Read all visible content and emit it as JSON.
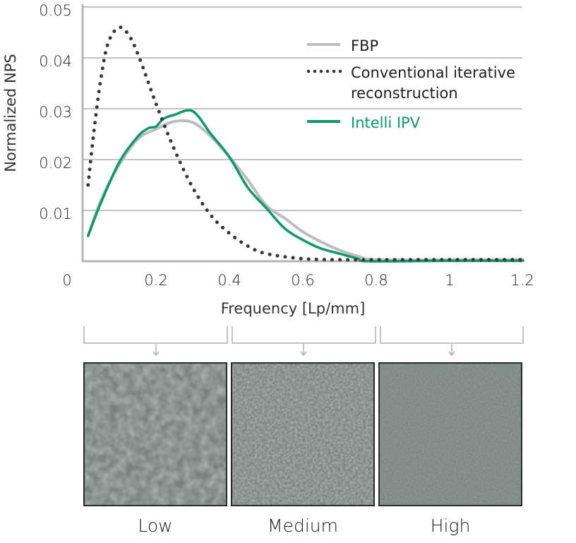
{
  "chart_data": {
    "type": "line",
    "title": "",
    "xlabel": "Frequency [Lp/mm]",
    "ylabel": "Normalized NPS",
    "xlim": [
      0,
      1.2
    ],
    "ylim": [
      0,
      0.05
    ],
    "x_ticks": [
      "0",
      "0.2",
      "0.4",
      "0.6",
      "0.8",
      "1",
      "1.2"
    ],
    "y_ticks": [
      "0.01",
      "0.02",
      "0.03",
      "0.04",
      "0.05"
    ],
    "grid": "horizontal",
    "legend_position": "upper right",
    "series": [
      {
        "name": "FBP",
        "style": "solid",
        "color": "#bdbdbd",
        "points": [
          [
            0.015,
            0.005
          ],
          [
            0.05,
            0.012
          ],
          [
            0.1,
            0.019
          ],
          [
            0.15,
            0.024
          ],
          [
            0.2,
            0.026
          ],
          [
            0.25,
            0.0275
          ],
          [
            0.3,
            0.0273
          ],
          [
            0.35,
            0.0245
          ],
          [
            0.4,
            0.0205
          ],
          [
            0.45,
            0.016
          ],
          [
            0.5,
            0.011
          ],
          [
            0.55,
            0.0085
          ],
          [
            0.6,
            0.0058
          ],
          [
            0.65,
            0.0038
          ],
          [
            0.7,
            0.0022
          ],
          [
            0.75,
            0.001
          ],
          [
            0.8,
            0.0003
          ],
          [
            1.0,
            0.0003
          ],
          [
            1.2,
            0.0003
          ]
        ]
      },
      {
        "name": "Conventional iterative reconstruction",
        "style": "dotted",
        "color": "#3a3436",
        "points": [
          [
            0.015,
            0.015
          ],
          [
            0.03,
            0.025
          ],
          [
            0.05,
            0.036
          ],
          [
            0.07,
            0.043
          ],
          [
            0.1,
            0.046
          ],
          [
            0.13,
            0.044
          ],
          [
            0.16,
            0.039
          ],
          [
            0.2,
            0.031
          ],
          [
            0.25,
            0.022
          ],
          [
            0.3,
            0.0145
          ],
          [
            0.35,
            0.009
          ],
          [
            0.4,
            0.0055
          ],
          [
            0.45,
            0.003
          ],
          [
            0.5,
            0.0015
          ],
          [
            0.6,
            0.0005
          ],
          [
            0.7,
            0.0003
          ],
          [
            0.8,
            0.0003
          ],
          [
            1.0,
            0.0003
          ],
          [
            1.2,
            0.0003
          ]
        ]
      },
      {
        "name": "Intelli IPV",
        "style": "solid",
        "color": "#0a9a6a",
        "points": [
          [
            0.015,
            0.005
          ],
          [
            0.05,
            0.0115
          ],
          [
            0.1,
            0.0195
          ],
          [
            0.15,
            0.0245
          ],
          [
            0.18,
            0.0262
          ],
          [
            0.2,
            0.0265
          ],
          [
            0.22,
            0.028
          ],
          [
            0.25,
            0.0288
          ],
          [
            0.3,
            0.0295
          ],
          [
            0.35,
            0.025
          ],
          [
            0.4,
            0.0205
          ],
          [
            0.45,
            0.0145
          ],
          [
            0.5,
            0.0105
          ],
          [
            0.55,
            0.0065
          ],
          [
            0.6,
            0.0042
          ],
          [
            0.65,
            0.0025
          ],
          [
            0.7,
            0.0015
          ],
          [
            0.75,
            0.0005
          ],
          [
            0.78,
            0.0
          ],
          [
            1.0,
            0.0001
          ],
          [
            1.2,
            0.0001
          ]
        ]
      }
    ],
    "annotations": [
      {
        "range": [
          0,
          0.4
        ],
        "label": "Low"
      },
      {
        "range": [
          0.4,
          0.8
        ],
        "label": "Medium"
      },
      {
        "range": [
          0.8,
          1.2
        ],
        "label": "High"
      }
    ]
  },
  "axis": {
    "ylabel": "Normalized NPS",
    "xlabel": "Frequency [Lp/mm]",
    "y_ticks": [
      "0.01",
      "0.02",
      "0.03",
      "0.04",
      "0.05"
    ],
    "x_ticks": [
      "0",
      "0.2",
      "0.4",
      "0.6",
      "0.8",
      "1",
      "1.2"
    ]
  },
  "legend": {
    "fbp": "FBP",
    "conventional_line1": "Conventional iterative",
    "conventional_line2": "reconstruction",
    "intelli": "Intelli IPV"
  },
  "panels": {
    "low": "Low",
    "medium": "Medium",
    "high": "High"
  },
  "colors": {
    "fbp": "#bdbdbd",
    "conventional": "#3a3436",
    "intelli": "#0a9a6a",
    "grid": "#c4c4c4",
    "panel_bg": "#7c8682"
  }
}
